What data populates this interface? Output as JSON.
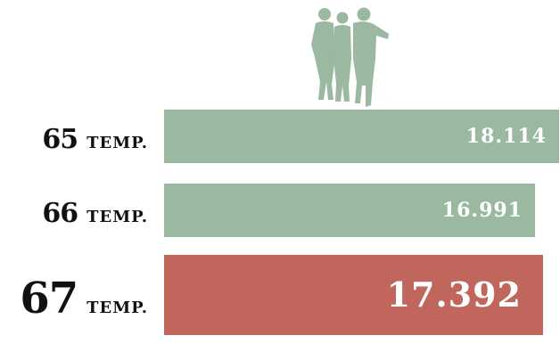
{
  "chart_data": {
    "type": "bar",
    "orientation": "horizontal",
    "categories": [
      "65",
      "66",
      "67"
    ],
    "category_suffix": "TEMP.",
    "values": [
      18114,
      16991,
      17392
    ],
    "value_labels": [
      "18.114",
      "16.991",
      "17.392"
    ],
    "highlight_index": 2,
    "colors": {
      "bar": "#9bb8a0",
      "highlight": "#c0665d",
      "label": "#111111",
      "value_text": "#ffffff"
    },
    "title": "",
    "xlabel": "",
    "ylabel": "",
    "grid": false,
    "legend": "none"
  },
  "icons": {
    "decoration": "children-silhouette-icon"
  }
}
